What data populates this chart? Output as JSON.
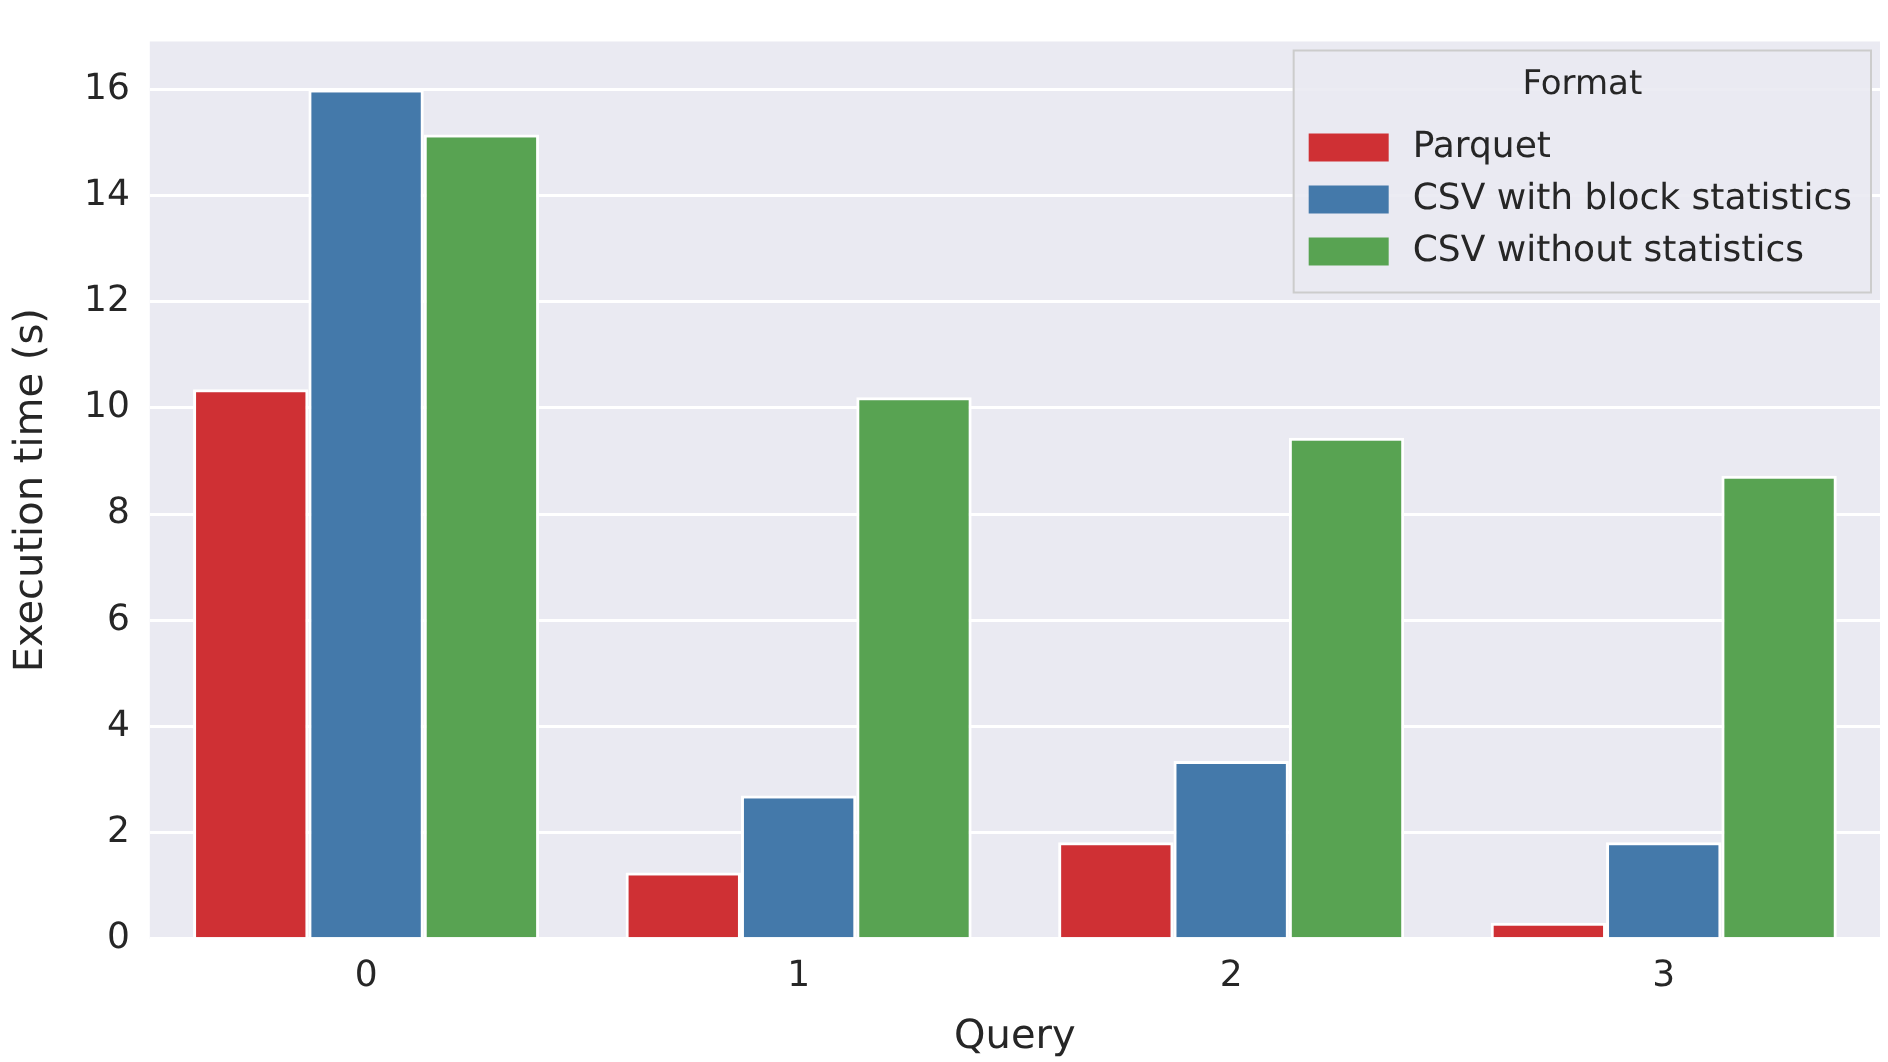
{
  "chart_data": {
    "type": "bar",
    "xlabel": "Query",
    "ylabel": "Execution time (s)",
    "legend_title": "Format",
    "categories": [
      "0",
      "1",
      "2",
      "3"
    ],
    "series": [
      {
        "name": "Parquet",
        "color": "#cf3034",
        "values": [
          10.35,
          1.25,
          1.82,
          0.3
        ]
      },
      {
        "name": "CSV with block statistics",
        "color": "#4479aa",
        "values": [
          16.0,
          2.7,
          3.35,
          1.82
        ]
      },
      {
        "name": "CSV without statistics",
        "color": "#58a352",
        "values": [
          15.15,
          10.2,
          9.44,
          8.72
        ]
      }
    ],
    "ylim": [
      0,
      16.9
    ],
    "yticks": [
      0,
      2,
      4,
      6,
      8,
      10,
      12,
      14,
      16
    ],
    "grid": "y",
    "legend": "top right"
  }
}
